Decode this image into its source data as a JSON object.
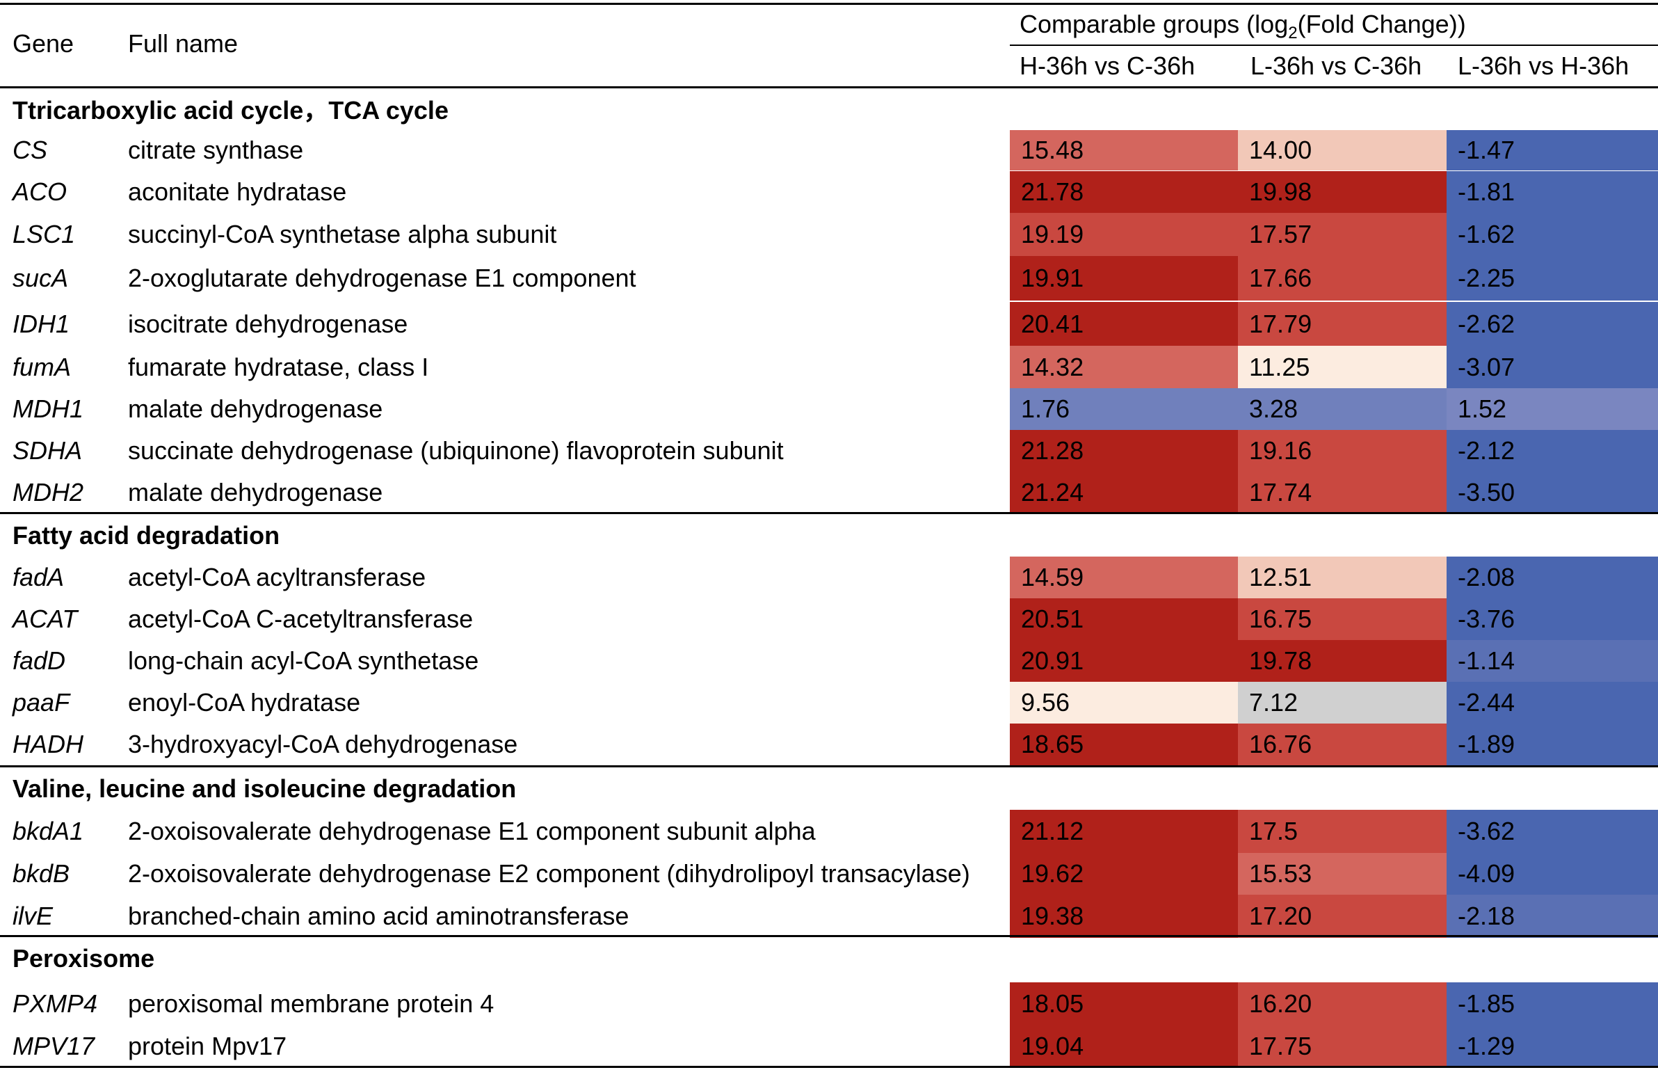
{
  "header": {
    "gene": "Gene",
    "full_name": "Full name",
    "group_title_pre": "Comparable groups (log",
    "group_title_sub": "2",
    "group_title_post": "(Fold Change))",
    "col1": "H-36h vs C-36h",
    "col2": "L-36h vs C-36h",
    "col3": "L-36h vs H-36h"
  },
  "sections": [
    {
      "title": "Ttricarboxylic acid cycle，TCA cycle",
      "rows": [
        {
          "gene": "CS",
          "full": "citrate synthase",
          "v1": "15.48",
          "v2": "14.00",
          "v3": "-1.47",
          "c1": "#d4665e",
          "c2": "#f2c8b8",
          "c3": "#4a66b0"
        },
        {
          "gene": "ACO",
          "full": "aconitate hydratase",
          "v1": "21.78",
          "v2": "19.98",
          "v3": "-1.81",
          "c1": "#b0211a",
          "c2": "#b0211a",
          "c3": "#4a66b0"
        },
        {
          "gene": "LSC1",
          "full": "succinyl-CoA synthetase alpha subunit",
          "v1": "19.19",
          "v2": "17.57",
          "v3": "-1.62",
          "c1": "#c94840",
          "c2": "#c94840",
          "c3": "#4a66b0"
        },
        {
          "gene": "sucA",
          "full": "2-oxoglutarate dehydrogenase E1 component",
          "v1": "19.91",
          "v2": "17.66",
          "v3": "-2.25",
          "c1": "#b0211a",
          "c2": "#c94840",
          "c3": "#4a66b0"
        },
        {
          "gene": "IDH1",
          "full": "isocitrate dehydrogenase",
          "v1": "20.41",
          "v2": "17.79",
          "v3": "-2.62",
          "c1": "#b0211a",
          "c2": "#c94840",
          "c3": "#4a66b0"
        },
        {
          "gene": "fumA",
          "full": "fumarate hydratase, class I",
          "v1": "14.32",
          "v2": "11.25",
          "v3": "-3.07",
          "c1": "#d4665e",
          "c2": "#fcece0",
          "c3": "#4a66b0"
        },
        {
          "gene": "MDH1",
          "full": "malate dehydrogenase",
          "v1": "1.76",
          "v2": "3.28",
          "v3": "1.52",
          "c1": "#7080bc",
          "c2": "#7080bc",
          "c3": "#7a86c0"
        },
        {
          "gene": "SDHA",
          "full": "succinate dehydrogenase (ubiquinone) flavoprotein subunit",
          "v1": "21.28",
          "v2": "19.16",
          "v3": "-2.12",
          "c1": "#b0211a",
          "c2": "#c94840",
          "c3": "#4a66b0"
        },
        {
          "gene": "MDH2",
          "full": "malate dehydrogenase",
          "v1": "21.24",
          "v2": "17.74",
          "v3": "-3.50",
          "c1": "#b0211a",
          "c2": "#c94840",
          "c3": "#4a66b0"
        }
      ]
    },
    {
      "title": "Fatty acid degradation",
      "rows": [
        {
          "gene": "fadA",
          "full": "acetyl-CoA acyltransferase",
          "v1": "14.59",
          "v2": "12.51",
          "v3": "-2.08",
          "c1": "#d4665e",
          "c2": "#f2c8b8",
          "c3": "#4a66b0"
        },
        {
          "gene": "ACAT",
          "full": "acetyl-CoA C-acetyltransferase",
          "v1": "20.51",
          "v2": "16.75",
          "v3": "-3.76",
          "c1": "#b0211a",
          "c2": "#c94840",
          "c3": "#4a66b0"
        },
        {
          "gene": "fadD",
          "full": "long-chain acyl-CoA synthetase",
          "v1": "20.91",
          "v2": "19.78",
          "v3": "-1.14",
          "c1": "#b0211a",
          "c2": "#b0211a",
          "c3": "#5a70b4"
        },
        {
          "gene": "paaF",
          "full": "enoyl-CoA hydratase",
          "v1": "9.56",
          "v2": "7.12",
          "v3": "-2.44",
          "c1": "#fcece0",
          "c2": "#d0d0d0",
          "c3": "#4a66b0"
        },
        {
          "gene": "HADH",
          "full": "3-hydroxyacyl-CoA dehydrogenase",
          "v1": "18.65",
          "v2": "16.76",
          "v3": "-1.89",
          "c1": "#b0211a",
          "c2": "#c94840",
          "c3": "#4a66b0"
        }
      ]
    },
    {
      "title": "Valine, leucine and isoleucine degradation",
      "rows": [
        {
          "gene": "bkdA1",
          "full": "2-oxoisovalerate dehydrogenase E1 component subunit alpha",
          "v1": "21.12",
          "v2": "17.5",
          "v3": "-3.62",
          "c1": "#b0211a",
          "c2": "#c94840",
          "c3": "#4a66b0"
        },
        {
          "gene": "bkdB",
          "full": "2-oxoisovalerate dehydrogenase E2 component (dihydrolipoyl transacylase)",
          "v1": "19.62",
          "v2": "15.53",
          "v3": "-4.09",
          "c1": "#b0211a",
          "c2": "#d4665e",
          "c3": "#4a66b0"
        },
        {
          "gene": "ilvE",
          "full": "branched-chain amino acid aminotransferase",
          "v1": "19.38",
          "v2": "17.20",
          "v3": "-2.18",
          "c1": "#b0211a",
          "c2": "#c94840",
          "c3": "#5a70b4"
        }
      ]
    },
    {
      "title": "Peroxisome",
      "rows": [
        {
          "gene": "PXMP4",
          "full": "peroxisomal membrane protein 4",
          "v1": "18.05",
          "v2": "16.20",
          "v3": "-1.85",
          "c1": "#b0211a",
          "c2": "#c94840",
          "c3": "#4a66b0"
        },
        {
          "gene": "MPV17",
          "full": "protein Mpv17",
          "v1": "19.04",
          "v2": "17.75",
          "v3": "-1.29",
          "c1": "#b0211a",
          "c2": "#c94840",
          "c3": "#4a66b0"
        }
      ]
    }
  ]
}
